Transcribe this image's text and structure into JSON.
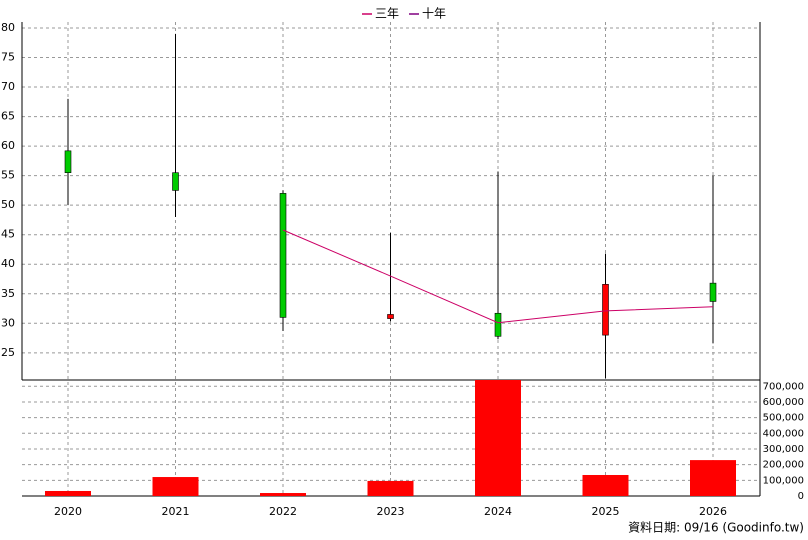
{
  "chart_data": {
    "type": "candlestick",
    "categories": [
      "2020",
      "2021",
      "2022",
      "2023",
      "2024",
      "2025",
      "2026"
    ],
    "open": [
      59.2,
      55.5,
      52.0,
      30.8,
      31.7,
      28.0,
      36.8
    ],
    "high": [
      68.0,
      79.0,
      52.5,
      45.3,
      55.7,
      41.8,
      55.0
    ],
    "low": [
      50.0,
      48.0,
      28.7,
      30.3,
      27.3,
      20.7,
      26.6
    ],
    "close": [
      55.5,
      52.5,
      31.0,
      31.5,
      27.8,
      36.6,
      33.7
    ],
    "up_color": "#ff0000",
    "down_color": "#00cc00",
    "series": [
      {
        "name": "三年",
        "color": "#cc0066",
        "values": [
          null,
          null,
          45.8,
          38.0,
          30.1,
          32.1,
          32.8
        ]
      },
      {
        "name": "十年",
        "color": "#800080",
        "values": [
          null,
          null,
          null,
          null,
          null,
          null,
          null
        ]
      }
    ],
    "ylim": [
      20.4,
      80
    ],
    "yticks": [
      25,
      30,
      35,
      40,
      45,
      50,
      55,
      60,
      65,
      70,
      75,
      80
    ],
    "volume": {
      "values": [
        32000,
        121000,
        19000,
        96000,
        740000,
        134000,
        229000
      ],
      "color": "#ff0000",
      "ylim": [
        0,
        740000
      ],
      "yticks": [
        0,
        {
          "value": 100000,
          "label": "100,000"
        },
        {
          "value": 200000,
          "label": "200,000"
        },
        {
          "value": 300000,
          "label": "300,000"
        },
        {
          "value": 400000,
          "label": "400,000"
        },
        {
          "value": 500000,
          "label": "500,000"
        },
        {
          "value": 600000,
          "label": "600,000"
        },
        {
          "value": 700000,
          "label": "700,000"
        }
      ]
    },
    "grid": true,
    "source": "資料日期: 09/16  (Goodinfo.tw)"
  }
}
